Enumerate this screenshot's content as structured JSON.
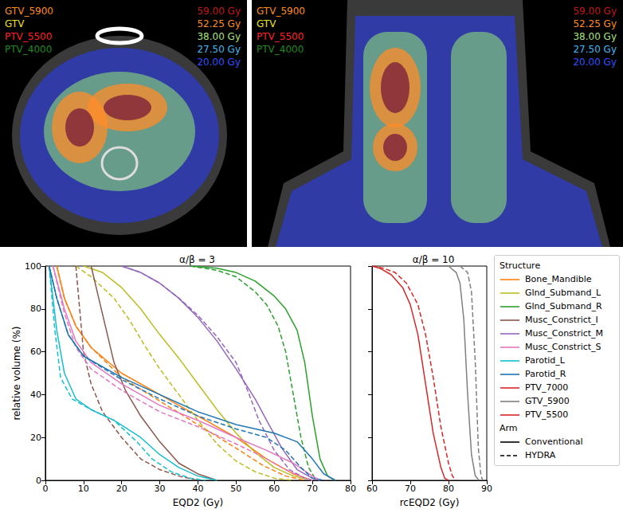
{
  "images": [
    {
      "structure_labels": [
        {
          "text": "GTV_5900",
          "color": "#ff8c1a"
        },
        {
          "text": "GTV",
          "color": "#f0e020"
        },
        {
          "text": "PTV_5500",
          "color": "#ff2020"
        },
        {
          "text": "PTV_4000",
          "color": "#1e8a1e"
        }
      ],
      "dose_labels": [
        {
          "text": "59.00 Gy",
          "color": "#c01818"
        },
        {
          "text": "52.25 Gy",
          "color": "#ff8c1a"
        },
        {
          "text": "38.00 Gy",
          "color": "#a8e080"
        },
        {
          "text": "27.50 Gy",
          "color": "#40b8f0"
        },
        {
          "text": "20.00 Gy",
          "color": "#3050ff"
        }
      ]
    },
    {
      "structure_labels": [
        {
          "text": "GTV_5900",
          "color": "#ff8c1a"
        },
        {
          "text": "GTV",
          "color": "#f0e020"
        },
        {
          "text": "PTV_5500",
          "color": "#ff2020"
        },
        {
          "text": "PTV_4000",
          "color": "#1e8a1e"
        }
      ],
      "dose_labels": [
        {
          "text": "59.00 Gy",
          "color": "#c01818"
        },
        {
          "text": "52.25 Gy",
          "color": "#ff8c1a"
        },
        {
          "text": "38.00 Gy",
          "color": "#a8e080"
        },
        {
          "text": "27.50 Gy",
          "color": "#40b8f0"
        },
        {
          "text": "20.00 Gy",
          "color": "#3050ff"
        }
      ]
    }
  ],
  "legend_box": {
    "structure_title": "Structure",
    "structures": [
      {
        "name": "Bone_Mandible",
        "color": "#ff7f0e"
      },
      {
        "name": "Glnd_Submand_L",
        "color": "#bcbd22"
      },
      {
        "name": "Glnd_Submand_R",
        "color": "#2ca02c"
      },
      {
        "name": "Musc_Constrict_I",
        "color": "#8c564b"
      },
      {
        "name": "Musc_Constrict_M",
        "color": "#9467bd"
      },
      {
        "name": "Musc_Constrict_S",
        "color": "#e377c2"
      },
      {
        "name": "Parotid_L",
        "color": "#17becf"
      },
      {
        "name": "Parotid_R",
        "color": "#1f77b4"
      },
      {
        "name": "PTV_7000",
        "color": "#d62728"
      },
      {
        "name": "GTV_5900",
        "color": "#7f7f7f"
      },
      {
        "name": "PTV_5500",
        "color": "#d62728"
      }
    ],
    "arm_title": "Arm",
    "arms": [
      {
        "name": "Conventional",
        "line_style": "solid"
      },
      {
        "name": "HYDRA",
        "line_style": "dashed"
      }
    ]
  },
  "chart_data": [
    {
      "type": "line",
      "title": "α/β = 3",
      "x_label": "EQD2 (Gy)",
      "y_label": "relative volume (%)",
      "xlim": [
        0,
        80
      ],
      "xticks": [
        0,
        10,
        20,
        30,
        40,
        50,
        60,
        70,
        80
      ],
      "ylim": [
        0,
        100
      ],
      "yticks": [
        0,
        20,
        40,
        60,
        80,
        100
      ],
      "grid": false,
      "tick_labels": true,
      "series": [
        {
          "name": "Bone_Mandible",
          "arm": "Conventional",
          "x": [
            3,
            5,
            8,
            12,
            20,
            30,
            40,
            50,
            58,
            65,
            70
          ],
          "values": [
            100,
            85,
            72,
            62,
            50,
            40,
            30,
            20,
            10,
            3,
            0
          ]
        },
        {
          "name": "Bone_Mandible",
          "arm": "HYDRA",
          "x": [
            3,
            5,
            8,
            12,
            20,
            30,
            40,
            50,
            57,
            63,
            68
          ],
          "values": [
            100,
            85,
            72,
            62,
            48,
            37,
            26,
            15,
            7,
            2,
            0
          ]
        },
        {
          "name": "Glnd_Submand_L",
          "arm": "Conventional",
          "x": [
            10,
            15,
            20,
            25,
            30,
            35,
            40,
            45,
            50,
            55,
            60,
            65,
            70
          ],
          "values": [
            100,
            97,
            90,
            80,
            68,
            57,
            45,
            33,
            22,
            13,
            6,
            2,
            0
          ]
        },
        {
          "name": "Glnd_Submand_L",
          "arm": "HYDRA",
          "x": [
            8,
            12,
            18,
            22,
            26,
            30,
            35,
            40,
            45,
            50,
            55,
            60,
            65
          ],
          "values": [
            100,
            95,
            85,
            75,
            63,
            52,
            40,
            28,
            17,
            9,
            4,
            1,
            0
          ]
        },
        {
          "name": "Glnd_Submand_R",
          "arm": "Conventional",
          "x": [
            38,
            45,
            50,
            55,
            60,
            63,
            66,
            68,
            70,
            72,
            74,
            76
          ],
          "values": [
            100,
            99,
            97,
            93,
            86,
            80,
            70,
            55,
            30,
            10,
            2,
            0
          ]
        },
        {
          "name": "Glnd_Submand_R",
          "arm": "HYDRA",
          "x": [
            38,
            45,
            50,
            55,
            58,
            61,
            63,
            65,
            67,
            69,
            71
          ],
          "values": [
            100,
            98,
            95,
            88,
            82,
            72,
            60,
            40,
            20,
            6,
            0
          ]
        },
        {
          "name": "Musc_Constrict_I",
          "arm": "Conventional",
          "x": [
            12,
            14,
            16,
            18,
            21,
            25,
            30,
            35,
            40,
            45
          ],
          "values": [
            100,
            85,
            70,
            55,
            42,
            30,
            18,
            8,
            3,
            0
          ]
        },
        {
          "name": "Musc_Constrict_I",
          "arm": "HYDRA",
          "x": [
            8,
            9,
            10,
            12,
            15,
            20,
            25,
            30,
            35,
            40
          ],
          "values": [
            100,
            80,
            60,
            45,
            32,
            20,
            10,
            5,
            2,
            0
          ]
        },
        {
          "name": "Musc_Constrict_M",
          "arm": "Conventional",
          "x": [
            20,
            25,
            30,
            35,
            40,
            45,
            50,
            55,
            58,
            62,
            66,
            70,
            72
          ],
          "values": [
            100,
            97,
            92,
            85,
            76,
            65,
            52,
            38,
            28,
            15,
            5,
            1,
            0
          ]
        },
        {
          "name": "Musc_Constrict_M",
          "arm": "HYDRA",
          "x": [
            20,
            25,
            30,
            35,
            40,
            45,
            50,
            53,
            56,
            60,
            64,
            68,
            70
          ],
          "values": [
            100,
            97,
            92,
            85,
            77,
            67,
            55,
            42,
            28,
            14,
            5,
            1,
            0
          ]
        },
        {
          "name": "Musc_Constrict_S",
          "arm": "Conventional",
          "x": [
            2,
            5,
            8,
            12,
            20,
            30,
            40,
            50,
            58,
            65,
            70,
            72
          ],
          "values": [
            100,
            80,
            65,
            55,
            45,
            35,
            28,
            20,
            14,
            8,
            2,
            0
          ]
        },
        {
          "name": "Musc_Constrict_S",
          "arm": "HYDRA",
          "x": [
            2,
            5,
            8,
            12,
            20,
            30,
            40,
            50,
            57,
            63,
            68,
            70
          ],
          "values": [
            100,
            78,
            62,
            52,
            42,
            32,
            25,
            17,
            11,
            5,
            1,
            0
          ]
        },
        {
          "name": "Parotid_L",
          "arm": "Conventional",
          "x": [
            1,
            3,
            5,
            8,
            12,
            18,
            25,
            30,
            35,
            40,
            45
          ],
          "values": [
            100,
            70,
            50,
            38,
            33,
            28,
            20,
            12,
            6,
            2,
            0
          ]
        },
        {
          "name": "Parotid_L",
          "arm": "HYDRA",
          "x": [
            1,
            2.5,
            4,
            7,
            12,
            18,
            24,
            28,
            33,
            38,
            42
          ],
          "values": [
            100,
            70,
            48,
            38,
            33,
            28,
            18,
            10,
            4,
            1,
            0
          ]
        },
        {
          "name": "Parotid_R",
          "arm": "Conventional",
          "x": [
            1,
            3,
            6,
            10,
            20,
            30,
            40,
            50,
            60,
            66,
            70,
            73,
            76
          ],
          "values": [
            100,
            85,
            68,
            58,
            48,
            40,
            32,
            26,
            22,
            18,
            10,
            3,
            0
          ]
        },
        {
          "name": "Parotid_R",
          "arm": "HYDRA",
          "x": [
            1,
            3,
            6,
            10,
            20,
            30,
            40,
            50,
            58,
            63,
            67,
            70,
            73
          ],
          "values": [
            100,
            85,
            68,
            58,
            47,
            38,
            30,
            24,
            20,
            14,
            6,
            1,
            0
          ]
        }
      ]
    },
    {
      "type": "line",
      "title": "α/β = 10",
      "x_label": "rcEQD2 (Gy)",
      "ylim": [
        0,
        100
      ],
      "yticks": [
        0,
        20,
        40,
        60,
        80,
        100
      ],
      "xlim": [
        60,
        90
      ],
      "xticks": [
        60,
        70,
        80,
        90
      ],
      "grid": false,
      "tick_labels": "x",
      "series": [
        {
          "name": "PTV_5500",
          "arm": "Conventional",
          "x": [
            60,
            62,
            65,
            68,
            70,
            72,
            74,
            76,
            78,
            79,
            80
          ],
          "values": [
            100,
            99,
            96,
            90,
            82,
            68,
            45,
            22,
            6,
            1,
            0
          ]
        },
        {
          "name": "PTV_5500",
          "arm": "HYDRA",
          "x": [
            60,
            63,
            66,
            69,
            72,
            74,
            76,
            78,
            80,
            81,
            82
          ],
          "values": [
            100,
            99,
            97,
            92,
            82,
            68,
            48,
            25,
            8,
            2,
            0
          ]
        },
        {
          "name": "GTV_5900",
          "arm": "Conventional",
          "x": [
            80,
            82,
            83,
            84,
            85,
            86,
            87,
            88
          ],
          "values": [
            100,
            97,
            92,
            75,
            40,
            12,
            2,
            0
          ]
        },
        {
          "name": "GTV_5900",
          "arm": "HYDRA",
          "x": [
            83,
            85,
            86,
            87,
            87.8,
            88.5,
            89
          ],
          "values": [
            100,
            97,
            88,
            55,
            15,
            2,
            0
          ]
        }
      ]
    }
  ]
}
